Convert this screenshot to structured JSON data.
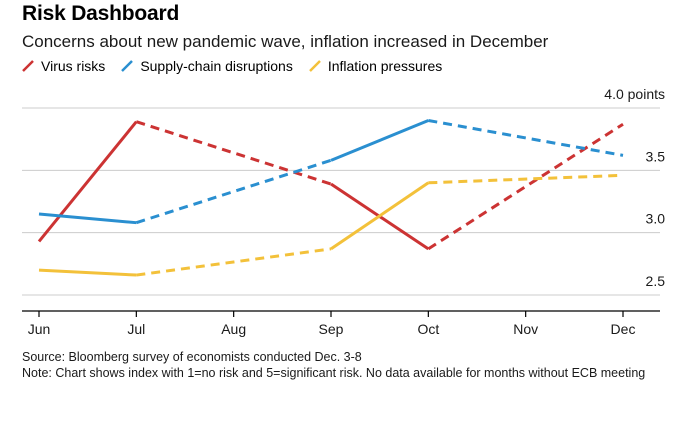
{
  "header": {
    "title": "Risk Dashboard",
    "subtitle": "Concerns about new pandemic wave, inflation increased in December"
  },
  "footer": {
    "source": "Source: Bloomberg survey of economists conducted Dec. 3-8",
    "note": "Note: Chart shows index with 1=no risk and 5=significant risk. No data available for months without ECB meeting"
  },
  "colors": {
    "virus": "#cc3333",
    "supply": "#2a8fd0",
    "inflation": "#f3c13a",
    "grid": "#cccccc",
    "axis": "#000000"
  },
  "chart_data": {
    "type": "line",
    "title": "Risk Dashboard",
    "subtitle": "Concerns about new pandemic wave, inflation increased in December",
    "categories": [
      "Jun",
      "Jul",
      "Aug",
      "Sep",
      "Oct",
      "Nov",
      "Dec"
    ],
    "ylim": [
      2.5,
      4.0
    ],
    "yticks": [
      2.5,
      3.0,
      3.5,
      4.0
    ],
    "ytick_labels": [
      "2.5",
      "3.0",
      "3.5",
      "4.0 points"
    ],
    "grid": true,
    "legend_position": "top-left",
    "line_style_note": "solid between consecutive months with data, dashed across months without data",
    "series": [
      {
        "name": "Virus risks",
        "color_key": "virus",
        "values": [
          2.93,
          3.89,
          null,
          3.39,
          2.87,
          null,
          3.87
        ]
      },
      {
        "name": "Supply-chain disruptions",
        "color_key": "supply",
        "values": [
          3.15,
          3.08,
          null,
          3.58,
          3.9,
          null,
          3.62
        ]
      },
      {
        "name": "Inflation pressures",
        "color_key": "inflation",
        "values": [
          2.7,
          2.66,
          null,
          2.87,
          3.4,
          null,
          3.46
        ]
      }
    ]
  }
}
